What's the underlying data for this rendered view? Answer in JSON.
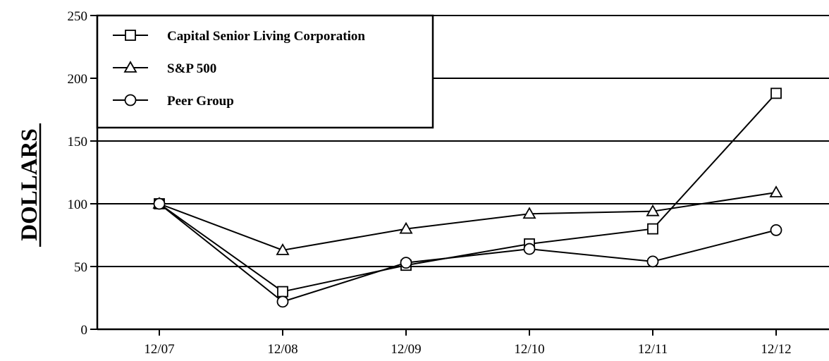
{
  "chart_data": {
    "type": "line",
    "title": "",
    "xlabel": "",
    "ylabel": "DOLLARS",
    "categories": [
      "12/07",
      "12/08",
      "12/09",
      "12/10",
      "12/11",
      "12/12"
    ],
    "ylim": [
      0,
      250
    ],
    "yticks": [
      "0",
      "50",
      "100",
      "150",
      "200",
      "250"
    ],
    "grid": true,
    "legend_position": "top-left",
    "series": [
      {
        "name": "Capital Senior Living Corporation",
        "marker": "square",
        "values": [
          100,
          30,
          51,
          68,
          80,
          188
        ]
      },
      {
        "name": "S&P 500",
        "marker": "triangle",
        "values": [
          100,
          63,
          80,
          92,
          94,
          109
        ]
      },
      {
        "name": "Peer Group",
        "marker": "circle",
        "values": [
          100,
          22,
          53,
          64,
          54,
          79
        ]
      }
    ]
  }
}
